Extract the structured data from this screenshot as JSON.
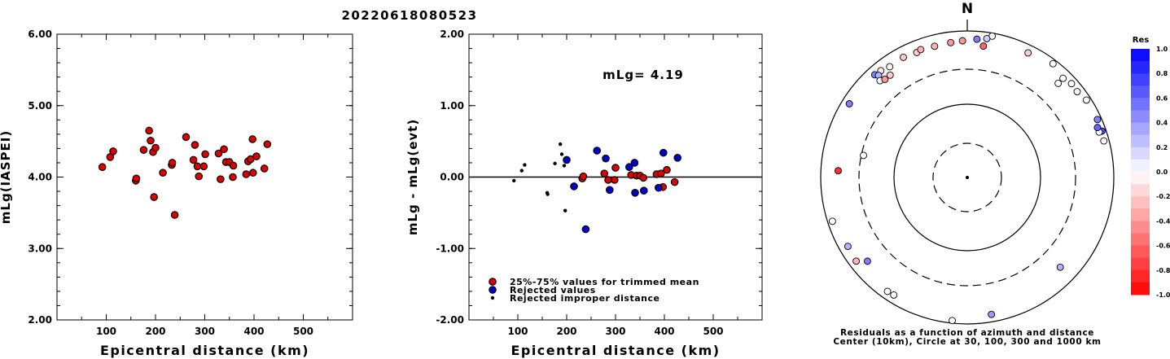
{
  "title": "20220618080523",
  "chart_data": [
    {
      "type": "scatter",
      "ylabel": "mLg(IASPEI)",
      "xlabel": "Epicentral distance (km)",
      "xlim": [
        0,
        600
      ],
      "ylim": [
        2.0,
        6.0
      ],
      "xticks": [
        "100",
        "200",
        "300",
        "400",
        "500"
      ],
      "yticks": [
        "2.00",
        "3.00",
        "4.00",
        "5.00",
        "6.00"
      ],
      "points": [
        [
          92,
          4.14
        ],
        [
          108,
          4.28
        ],
        [
          114,
          4.36
        ],
        [
          160,
          3.95
        ],
        [
          161,
          3.98
        ],
        [
          176,
          4.38
        ],
        [
          187,
          4.65
        ],
        [
          190,
          4.51
        ],
        [
          195,
          4.35
        ],
        [
          200,
          4.41
        ],
        [
          197,
          3.72
        ],
        [
          215,
          4.06
        ],
        [
          233,
          4.17
        ],
        [
          234,
          4.2
        ],
        [
          239,
          3.47
        ],
        [
          262,
          4.56
        ],
        [
          277,
          4.24
        ],
        [
          280,
          4.45
        ],
        [
          285,
          4.15
        ],
        [
          288,
          4.01
        ],
        [
          298,
          4.15
        ],
        [
          301,
          4.32
        ],
        [
          328,
          4.33
        ],
        [
          332,
          3.97
        ],
        [
          339,
          4.39
        ],
        [
          343,
          4.21
        ],
        [
          350,
          4.21
        ],
        [
          357,
          4.0
        ],
        [
          358,
          4.16
        ],
        [
          384,
          4.04
        ],
        [
          388,
          4.22
        ],
        [
          393,
          4.25
        ],
        [
          397,
          4.53
        ],
        [
          398,
          4.06
        ],
        [
          405,
          4.29
        ],
        [
          421,
          4.12
        ],
        [
          427,
          4.46
        ]
      ]
    },
    {
      "type": "scatter",
      "ylabel": "mLg - mLg(evt)",
      "xlabel": "Epicentral distance (km)",
      "annotation": "mLg= 4.19",
      "xlim": [
        0,
        600
      ],
      "ylim": [
        -2.0,
        2.0
      ],
      "xticks": [
        "100",
        "200",
        "300",
        "400",
        "500"
      ],
      "yticks": [
        "-2.00",
        "-1.00",
        "0.00",
        "1.00",
        "2.00"
      ],
      "legend": [
        {
          "label": "25%-75% values for trimmed mean",
          "color": "#dd0000"
        },
        {
          "label": "Rejected values",
          "color": "#0000cc"
        },
        {
          "label": "Rejected improper distance",
          "color": "#000000"
        }
      ],
      "series": [
        {
          "name": "25%-75% values for trimmed mean",
          "color": "#dd0000",
          "points": [
            [
              232,
              -0.02
            ],
            [
              234,
              0.01
            ],
            [
              277,
              0.05
            ],
            [
              285,
              -0.04
            ],
            [
              298,
              -0.04
            ],
            [
              300,
              0.13
            ],
            [
              332,
              0.03
            ],
            [
              343,
              0.02
            ],
            [
              350,
              0.02
            ],
            [
              357,
              -0.01
            ],
            [
              384,
              0.04
            ],
            [
              393,
              0.05
            ],
            [
              397,
              -0.14
            ],
            [
              405,
              0.1
            ],
            [
              421,
              -0.07
            ]
          ]
        },
        {
          "name": "Rejected values",
          "color": "#0000cc",
          "points": [
            [
              200,
              0.24
            ],
            [
              215,
              -0.13
            ],
            [
              239,
              -0.73
            ],
            [
              262,
              0.37
            ],
            [
              280,
              0.26
            ],
            [
              288,
              -0.18
            ],
            [
              328,
              0.14
            ],
            [
              339,
              0.2
            ],
            [
              340,
              -0.22
            ],
            [
              358,
              -0.19
            ],
            [
              388,
              -0.15
            ],
            [
              398,
              0.34
            ],
            [
              427,
              0.27
            ]
          ]
        },
        {
          "name": "Rejected improper distance",
          "color": "#000000",
          "points": [
            [
              92,
              -0.05
            ],
            [
              108,
              0.09
            ],
            [
              114,
              0.17
            ],
            [
              160,
              -0.22
            ],
            [
              161,
              -0.24
            ],
            [
              176,
              0.19
            ],
            [
              187,
              0.46
            ],
            [
              190,
              0.32
            ],
            [
              195,
              0.16
            ],
            [
              197,
              -0.47
            ]
          ]
        }
      ]
    },
    {
      "type": "scatter",
      "subtype": "polar",
      "north_label": "N",
      "caption_line1": "Residuals as a function of azimuth and distance",
      "caption_line2": "Center (10km), Circle at 30, 100, 300 and 1000 km",
      "colorbar": {
        "title": "Res",
        "ticks": [
          "1.0",
          "0.8",
          "0.6",
          "0.4",
          "0.2",
          "0.0",
          "-0.2",
          "-0.4",
          "-0.6",
          "-0.8",
          "-1.0"
        ],
        "range": [
          -1.0,
          1.0
        ],
        "max_color": "#0000ff",
        "min_color": "#ff0000"
      },
      "points": [
        {
          "azimuth": 338,
          "distance": 690,
          "residual": -0.2
        },
        {
          "azimuth": 346,
          "distance": 700,
          "residual": -0.3
        },
        {
          "azimuth": 353,
          "distance": 715,
          "residual": -0.4
        },
        {
          "azimuth": 358,
          "distance": 735,
          "residual": -0.4
        },
        {
          "azimuth": 332,
          "distance": 720,
          "residual": -0.2
        },
        {
          "azimuth": 340,
          "distance": 720,
          "residual": -0.3
        },
        {
          "azimuth": 321,
          "distance": 750,
          "residual": -0.1
        },
        {
          "azimuth": 325,
          "distance": 700,
          "residual": 0.0
        },
        {
          "azimuth": 318,
          "distance": 770,
          "residual": 0.5
        },
        {
          "azimuth": 319,
          "distance": 700,
          "residual": 0.3
        },
        {
          "azimuth": 318,
          "distance": 600,
          "residual": 0.0
        },
        {
          "azimuth": 320,
          "distance": 560,
          "residual": -0.4
        },
        {
          "azimuth": 323,
          "distance": 560,
          "residual": -0.2
        },
        {
          "azimuth": 302,
          "distance": 790,
          "residual": 0.5
        },
        {
          "azimuth": 273,
          "distance": 580,
          "residual": -0.8
        },
        {
          "azimuth": 282,
          "distance": 280,
          "residual": 0.0
        },
        {
          "azimuth": 252,
          "distance": 860,
          "residual": 0.0
        },
        {
          "azimuth": 240,
          "distance": 760,
          "residual": 0.3
        },
        {
          "azimuth": 233,
          "distance": 790,
          "residual": -0.3
        },
        {
          "azimuth": 230,
          "distance": 600,
          "residual": 0.5
        },
        {
          "azimuth": 215,
          "distance": 790,
          "residual": 0.0
        },
        {
          "azimuth": 212,
          "distance": 780,
          "residual": 0.0
        },
        {
          "azimuth": 186,
          "distance": 920,
          "residual": 0.0
        },
        {
          "azimuth": 170,
          "distance": 790,
          "residual": 0.4
        },
        {
          "azimuth": 134,
          "distance": 580,
          "residual": 0.3
        },
        {
          "azimuth": 75,
          "distance": 850,
          "residual": 0.0
        },
        {
          "azimuth": 71,
          "distance": 880,
          "residual": 0.7
        },
        {
          "azimuth": 71,
          "distance": 800,
          "residual": 0.0
        },
        {
          "azimuth": 69,
          "distance": 800,
          "residual": 0.6
        },
        {
          "azimuth": 66,
          "distance": 880,
          "residual": 0.5
        },
        {
          "azimuth": 57,
          "distance": 870,
          "residual": 0.0
        },
        {
          "azimuth": 52,
          "distance": 800,
          "residual": 0.0
        },
        {
          "azimuth": 48,
          "distance": 820,
          "residual": 0.0
        },
        {
          "azimuth": 44,
          "distance": 760,
          "residual": 0.0
        },
        {
          "azimuth": 44,
          "distance": 610,
          "residual": 0.0
        },
        {
          "azimuth": 37,
          "distance": 880,
          "residual": 0.0
        },
        {
          "azimuth": 26,
          "distance": 780,
          "residual": -0.2
        },
        {
          "azimuth": 10,
          "distance": 910,
          "residual": 0.0
        },
        {
          "azimuth": 8,
          "distance": 820,
          "residual": 0.2
        },
        {
          "azimuth": 4,
          "distance": 780,
          "residual": 0.5
        },
        {
          "azimuth": 7,
          "distance": 640,
          "residual": -0.6
        },
        {
          "azimuth": 0,
          "distance": 0,
          "residual": 0.0
        }
      ]
    }
  ]
}
